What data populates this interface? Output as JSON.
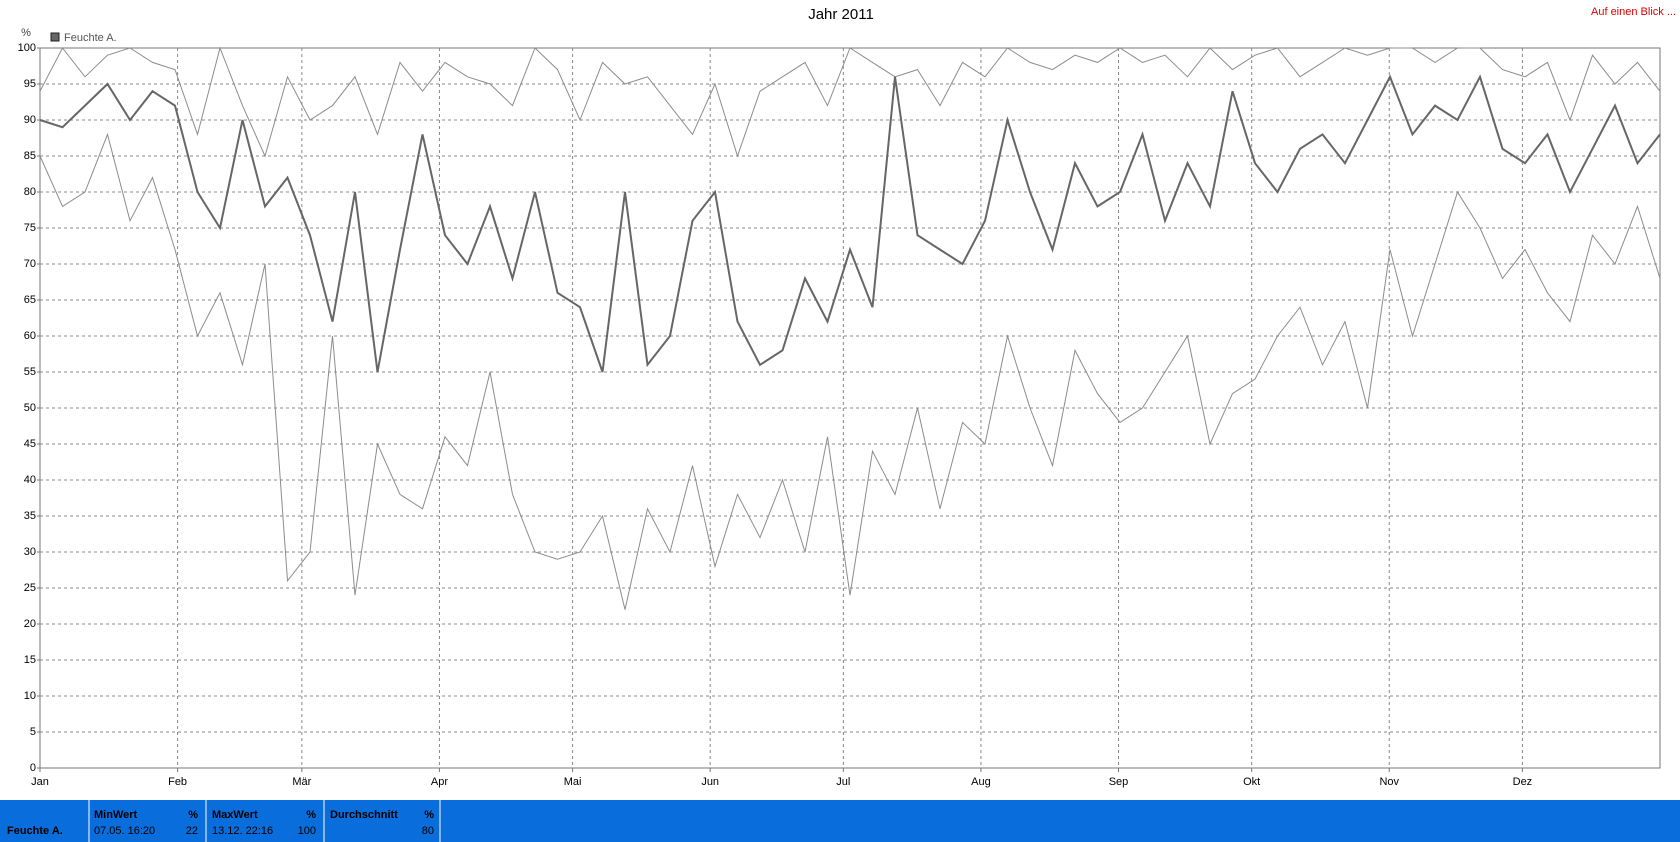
{
  "chart_data": {
    "type": "line",
    "title": "Jahr 2011",
    "y_label": "%",
    "link": "Auf einen Blick ...",
    "x_tick_labels": [
      "Jan",
      "Feb",
      "Mär",
      "Apr",
      "Mai",
      "Jun",
      "Jul",
      "Aug",
      "Sep",
      "Okt",
      "Nov",
      "Dez"
    ],
    "ylim": [
      0,
      100
    ],
    "yticks": [
      0,
      5,
      10,
      15,
      20,
      25,
      30,
      35,
      40,
      45,
      50,
      55,
      60,
      65,
      70,
      75,
      80,
      85,
      90,
      95,
      100
    ],
    "grid": true,
    "series": [
      {
        "name": "Feuchte A.",
        "color": "#666666",
        "range_color": "#8c8c8c",
        "values": [
          90,
          89,
          92,
          95,
          90,
          94,
          92,
          80,
          75,
          90,
          78,
          82,
          74,
          62,
          80,
          55,
          72,
          88,
          74,
          70,
          78,
          68,
          80,
          66,
          64,
          55,
          80,
          56,
          60,
          76,
          80,
          62,
          56,
          58,
          68,
          62,
          72,
          64,
          96,
          74,
          72,
          70,
          76,
          90,
          80,
          72,
          84,
          78,
          80,
          88,
          76,
          84,
          78,
          94,
          84,
          80,
          86,
          88,
          84,
          90,
          96,
          88,
          92,
          90,
          96,
          86,
          84,
          88,
          80,
          86,
          92,
          84,
          88
        ],
        "max": [
          94,
          100,
          96,
          99,
          100,
          98,
          97,
          88,
          100,
          92,
          85,
          96,
          90,
          92,
          96,
          88,
          98,
          94,
          98,
          96,
          95,
          92,
          100,
          97,
          90,
          98,
          95,
          96,
          92,
          88,
          95,
          85,
          94,
          96,
          98,
          92,
          100,
          98,
          96,
          97,
          92,
          98,
          96,
          100,
          98,
          97,
          99,
          98,
          100,
          98,
          99,
          96,
          100,
          97,
          99,
          100,
          96,
          98,
          100,
          99,
          100,
          100,
          98,
          100,
          100,
          97,
          96,
          98,
          90,
          99,
          95,
          98,
          94
        ],
        "min": [
          85,
          78,
          80,
          88,
          76,
          82,
          72,
          60,
          66,
          56,
          70,
          26,
          30,
          60,
          24,
          45,
          38,
          36,
          46,
          42,
          55,
          38,
          30,
          29,
          30,
          35,
          22,
          36,
          30,
          42,
          28,
          38,
          32,
          40,
          30,
          46,
          24,
          44,
          38,
          50,
          36,
          48,
          45,
          60,
          50,
          42,
          58,
          52,
          48,
          50,
          55,
          60,
          45,
          52,
          54,
          60,
          64,
          56,
          62,
          50,
          72,
          60,
          70,
          80,
          75,
          68,
          72,
          66,
          62,
          74,
          70,
          78,
          68
        ]
      }
    ]
  },
  "summary": {
    "row_label": "Feuchte A.",
    "columns": [
      {
        "header": "MinWert",
        "unit": "%",
        "date": "07.05.  16:20",
        "value": 22
      },
      {
        "header": "MaxWert",
        "unit": "%",
        "date": "13.12.  22:16",
        "value": 100
      },
      {
        "header": "Durchschnitt",
        "unit": "%",
        "value": 80
      }
    ]
  }
}
